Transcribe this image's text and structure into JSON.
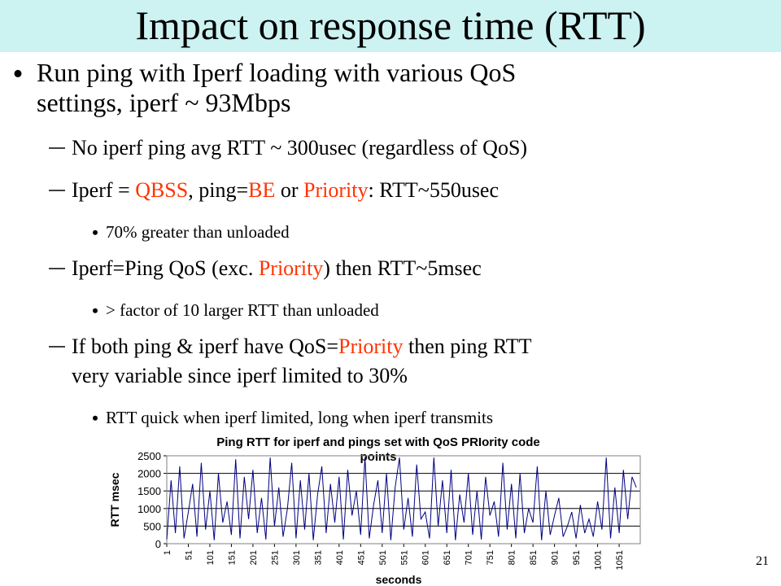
{
  "header": {
    "title": "Impact on response time (RTT)"
  },
  "bullets": [
    {
      "level": 1,
      "lines": [
        [
          {
            "text": "Run ping with Iperf loading with various QoS"
          }
        ],
        [
          {
            "text": "settings, iperf ~ 93Mbps"
          }
        ]
      ]
    },
    {
      "level": 2,
      "lines": [
        [
          {
            "text": "No iperf ping avg RTT ~ 300usec (regardless of QoS)"
          }
        ]
      ]
    },
    {
      "level": 2,
      "lines": [
        [
          {
            "text": "Iperf = "
          },
          {
            "text": "QBSS",
            "color": "#ff3300"
          },
          {
            "text": ", ping="
          },
          {
            "text": "BE",
            "color": "#ff3300"
          },
          {
            "text": " or "
          },
          {
            "text": "Priority",
            "color": "#ff3300"
          },
          {
            "text": ": RTT~550usec"
          }
        ]
      ]
    },
    {
      "level": 3,
      "lines": [
        [
          {
            "text": "70% greater than unloaded"
          }
        ]
      ]
    },
    {
      "level": 2,
      "lines": [
        [
          {
            "text": "Iperf=Ping QoS (exc. "
          },
          {
            "text": "Priority",
            "color": "#ff3300"
          },
          {
            "text": ") then RTT~5msec"
          }
        ]
      ]
    },
    {
      "level": 3,
      "lines": [
        [
          {
            "text": "> factor of 10 larger RTT than unloaded"
          }
        ]
      ]
    },
    {
      "level": 2,
      "lines": [
        [
          {
            "text": "If both ping & iperf have QoS="
          },
          {
            "text": "Priority",
            "color": "#ff3300"
          },
          {
            "text": " then ping RTT"
          }
        ],
        [
          {
            "text": "very variable since iperf limited to 30%"
          }
        ]
      ]
    },
    {
      "level": 3,
      "lines": [
        [
          {
            "text": "RTT quick when iperf limited, long when iperf transmits"
          }
        ]
      ]
    }
  ],
  "page_number": "21",
  "chart_data": {
    "type": "line",
    "title_lines": [
      "Ping RTT for iperf and pings set with QoS PRIority code",
      "points"
    ],
    "x_label": "seconds",
    "y_label": "RTT msec",
    "xlim": [
      1,
      1100
    ],
    "ylim": [
      0,
      2500
    ],
    "xticks": [
      1,
      51,
      101,
      151,
      201,
      251,
      301,
      351,
      401,
      451,
      501,
      551,
      601,
      651,
      701,
      751,
      801,
      851,
      901,
      951,
      1001,
      1051
    ],
    "yticks": [
      0,
      500,
      1000,
      1500,
      2000,
      2500
    ],
    "grid": true,
    "series": [
      {
        "color": "#000080",
        "x": [
          1,
          11,
          21,
          31,
          41,
          51,
          61,
          71,
          81,
          91,
          101,
          111,
          121,
          131,
          141,
          151,
          161,
          171,
          181,
          191,
          201,
          211,
          221,
          231,
          241,
          251,
          261,
          271,
          281,
          291,
          301,
          311,
          321,
          331,
          341,
          351,
          361,
          371,
          381,
          391,
          401,
          411,
          421,
          431,
          441,
          451,
          461,
          471,
          481,
          491,
          501,
          511,
          521,
          531,
          541,
          551,
          561,
          571,
          581,
          591,
          601,
          611,
          621,
          631,
          641,
          651,
          661,
          671,
          681,
          691,
          701,
          711,
          721,
          731,
          741,
          751,
          761,
          771,
          781,
          791,
          801,
          811,
          821,
          831,
          841,
          851,
          861,
          871,
          881,
          891,
          901,
          911,
          921,
          931,
          941,
          951,
          961,
          971,
          981,
          991,
          1001,
          1011,
          1021,
          1031,
          1041,
          1051,
          1061,
          1071,
          1081,
          1091
        ],
        "values": [
          120,
          1800,
          300,
          2200,
          150,
          900,
          1700,
          200,
          2300,
          400,
          1500,
          100,
          2000,
          600,
          1200,
          250,
          2400,
          150,
          1900,
          700,
          2100,
          300,
          1300,
          120,
          2450,
          500,
          1600,
          200,
          1000,
          2300,
          150,
          1800,
          400,
          2000,
          100,
          1400,
          2200,
          300,
          1700,
          600,
          1900,
          120,
          2100,
          800,
          1500,
          250,
          2450,
          150,
          1100,
          1800,
          300,
          2000,
          100,
          1600,
          2450,
          400,
          1300,
          200,
          2250,
          700,
          900,
          150,
          2450,
          500,
          1800,
          300,
          2100,
          100,
          1400,
          600,
          2000,
          250,
          1500,
          120,
          1900,
          800,
          1200,
          200,
          2300,
          400,
          1700,
          150,
          2000,
          300,
          1000,
          600,
          2200,
          100,
          1500,
          250,
          800,
          1300,
          200,
          500,
          900,
          150,
          1100,
          300,
          700,
          200,
          1200,
          400,
          2450,
          150,
          1600,
          300,
          2100,
          700,
          1900,
          1600
        ]
      }
    ]
  }
}
